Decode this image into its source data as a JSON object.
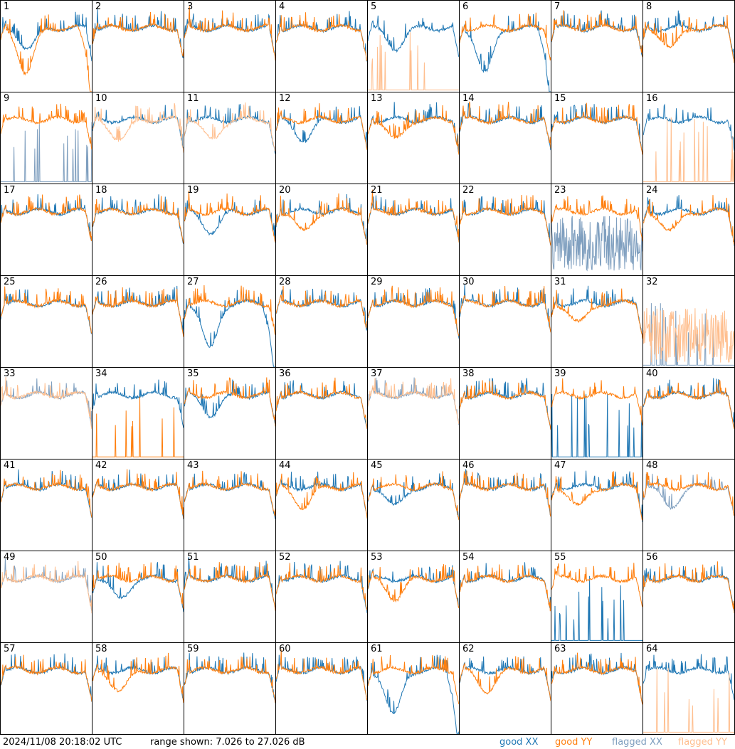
{
  "footer": {
    "timestamp": "2024/11/08 20:18:02 UTC",
    "range_text": "range shown: 7.026 to 27.026 dB"
  },
  "legend": {
    "good_xx": "good XX",
    "good_yy": "good YY",
    "flagged_xx": "flagged XX",
    "flagged_yy": "flagged YY"
  },
  "colors": {
    "good_xx": "#1f77b4",
    "good_yy": "#ff7f0e",
    "flagged_xx": "#7f9fbf",
    "flagged_yy": "#ffbf8f"
  },
  "chart_data": {
    "type": "line",
    "ylim": [
      7.026,
      27.026
    ],
    "yunit": "dB",
    "layout": "8x8 grid of small multiples",
    "panels": [
      {
        "id": "1",
        "xx": "dip",
        "xx_flag": false,
        "yy": "deepdip",
        "yy_flag": false
      },
      {
        "id": "2",
        "xx": "normal",
        "xx_flag": false,
        "yy": "normal",
        "yy_flag": false
      },
      {
        "id": "3",
        "xx": "normal",
        "xx_flag": false,
        "yy": "normal",
        "yy_flag": false
      },
      {
        "id": "4",
        "xx": "normal",
        "xx_flag": false,
        "yy": "normal",
        "yy_flag": false
      },
      {
        "id": "5",
        "xx": "dip",
        "xx_flag": false,
        "yy": "spiky",
        "yy_flag": true
      },
      {
        "id": "6",
        "xx": "deepdip",
        "xx_flag": false,
        "yy": "normal",
        "yy_flag": false
      },
      {
        "id": "7",
        "xx": "normal",
        "xx_flag": false,
        "yy": "normal",
        "yy_flag": false
      },
      {
        "id": "8",
        "xx": "normal",
        "xx_flag": false,
        "yy": "dip",
        "yy_flag": false
      },
      {
        "id": "9",
        "xx": "spiky",
        "xx_flag": true,
        "yy": "normal",
        "yy_flag": false
      },
      {
        "id": "10",
        "xx": "normal",
        "xx_flag": false,
        "yy": "dip",
        "yy_flag": true
      },
      {
        "id": "11",
        "xx": "normal",
        "xx_flag": false,
        "yy": "dip",
        "yy_flag": true
      },
      {
        "id": "12",
        "xx": "dip",
        "xx_flag": false,
        "yy": "normal",
        "yy_flag": false
      },
      {
        "id": "13",
        "xx": "normal",
        "xx_flag": false,
        "yy": "dip",
        "yy_flag": false
      },
      {
        "id": "14",
        "xx": "normal",
        "xx_flag": false,
        "yy": "normal",
        "yy_flag": false
      },
      {
        "id": "15",
        "xx": "normal",
        "xx_flag": false,
        "yy": "normal",
        "yy_flag": false
      },
      {
        "id": "16",
        "xx": "normal",
        "xx_flag": false,
        "yy": "spiky",
        "yy_flag": true
      },
      {
        "id": "17",
        "xx": "normal",
        "xx_flag": false,
        "yy": "normal",
        "yy_flag": false
      },
      {
        "id": "18",
        "xx": "normal",
        "xx_flag": false,
        "yy": "normal",
        "yy_flag": false
      },
      {
        "id": "19",
        "xx": "dip",
        "xx_flag": false,
        "yy": "normal",
        "yy_flag": false
      },
      {
        "id": "20",
        "xx": "normal",
        "xx_flag": false,
        "yy": "dip",
        "yy_flag": false
      },
      {
        "id": "21",
        "xx": "normal",
        "xx_flag": false,
        "yy": "normal",
        "yy_flag": false
      },
      {
        "id": "22",
        "xx": "normal",
        "xx_flag": false,
        "yy": "normal",
        "yy_flag": false
      },
      {
        "id": "23",
        "xx": "noise",
        "xx_flag": true,
        "yy": "normal",
        "yy_flag": false
      },
      {
        "id": "24",
        "xx": "normal",
        "xx_flag": false,
        "yy": "dip",
        "yy_flag": false
      },
      {
        "id": "25",
        "xx": "normal",
        "xx_flag": false,
        "yy": "normal",
        "yy_flag": false
      },
      {
        "id": "26",
        "xx": "normal",
        "xx_flag": false,
        "yy": "normal",
        "yy_flag": false
      },
      {
        "id": "27",
        "xx": "deepdip",
        "xx_flag": false,
        "yy": "normal",
        "yy_flag": false
      },
      {
        "id": "28",
        "xx": "normal",
        "xx_flag": false,
        "yy": "normal",
        "yy_flag": false
      },
      {
        "id": "29",
        "xx": "normal",
        "xx_flag": false,
        "yy": "normal",
        "yy_flag": false
      },
      {
        "id": "30",
        "xx": "normal",
        "xx_flag": false,
        "yy": "normal",
        "yy_flag": false
      },
      {
        "id": "31",
        "xx": "normal",
        "xx_flag": false,
        "yy": "dip",
        "yy_flag": false
      },
      {
        "id": "32",
        "xx": "spiky",
        "xx_flag": true,
        "yy": "noise",
        "yy_flag": true
      },
      {
        "id": "33",
        "xx": "normal",
        "xx_flag": true,
        "yy": "normal",
        "yy_flag": true
      },
      {
        "id": "34",
        "xx": "normal",
        "xx_flag": false,
        "yy": "spiky",
        "yy_flag": false
      },
      {
        "id": "35",
        "xx": "dip",
        "xx_flag": false,
        "yy": "normal",
        "yy_flag": false
      },
      {
        "id": "36",
        "xx": "normal",
        "xx_flag": false,
        "yy": "normal",
        "yy_flag": false
      },
      {
        "id": "37",
        "xx": "normal",
        "xx_flag": true,
        "yy": "normal",
        "yy_flag": true
      },
      {
        "id": "38",
        "xx": "normal",
        "xx_flag": false,
        "yy": "normal",
        "yy_flag": false
      },
      {
        "id": "39",
        "xx": "spiky",
        "xx_flag": false,
        "yy": "normal",
        "yy_flag": false
      },
      {
        "id": "40",
        "xx": "normal",
        "xx_flag": false,
        "yy": "normal",
        "yy_flag": false
      },
      {
        "id": "41",
        "xx": "normal",
        "xx_flag": false,
        "yy": "normal",
        "yy_flag": false
      },
      {
        "id": "42",
        "xx": "normal",
        "xx_flag": false,
        "yy": "normal",
        "yy_flag": false
      },
      {
        "id": "43",
        "xx": "normal",
        "xx_flag": false,
        "yy": "normal",
        "yy_flag": false
      },
      {
        "id": "44",
        "xx": "normal",
        "xx_flag": false,
        "yy": "dip",
        "yy_flag": false
      },
      {
        "id": "45",
        "xx": "dip",
        "xx_flag": false,
        "yy": "normal",
        "yy_flag": false
      },
      {
        "id": "46",
        "xx": "normal",
        "xx_flag": false,
        "yy": "normal",
        "yy_flag": false
      },
      {
        "id": "47",
        "xx": "normal",
        "xx_flag": false,
        "yy": "dip",
        "yy_flag": false
      },
      {
        "id": "48",
        "xx": "dip",
        "xx_flag": true,
        "yy": "normal",
        "yy_flag": false
      },
      {
        "id": "49",
        "xx": "normal",
        "xx_flag": true,
        "yy": "normal",
        "yy_flag": true
      },
      {
        "id": "50",
        "xx": "dip",
        "xx_flag": false,
        "yy": "normal",
        "yy_flag": false
      },
      {
        "id": "51",
        "xx": "normal",
        "xx_flag": false,
        "yy": "normal",
        "yy_flag": false
      },
      {
        "id": "52",
        "xx": "normal",
        "xx_flag": false,
        "yy": "normal",
        "yy_flag": false
      },
      {
        "id": "53",
        "xx": "normal",
        "xx_flag": false,
        "yy": "dip",
        "yy_flag": false
      },
      {
        "id": "54",
        "xx": "normal",
        "xx_flag": false,
        "yy": "normal",
        "yy_flag": false
      },
      {
        "id": "55",
        "xx": "spiky",
        "xx_flag": false,
        "yy": "normal",
        "yy_flag": false
      },
      {
        "id": "56",
        "xx": "normal",
        "xx_flag": false,
        "yy": "normal",
        "yy_flag": false
      },
      {
        "id": "57",
        "xx": "normal",
        "xx_flag": false,
        "yy": "normal",
        "yy_flag": false
      },
      {
        "id": "58",
        "xx": "normal",
        "xx_flag": false,
        "yy": "dip",
        "yy_flag": false
      },
      {
        "id": "59",
        "xx": "normal",
        "xx_flag": false,
        "yy": "normal",
        "yy_flag": false
      },
      {
        "id": "60",
        "xx": "normal",
        "xx_flag": false,
        "yy": "normal",
        "yy_flag": false
      },
      {
        "id": "61",
        "xx": "deepdip",
        "xx_flag": false,
        "yy": "normal",
        "yy_flag": false
      },
      {
        "id": "62",
        "xx": "normal",
        "xx_flag": false,
        "yy": "dip",
        "yy_flag": false
      },
      {
        "id": "63",
        "xx": "normal",
        "xx_flag": false,
        "yy": "normal",
        "yy_flag": false
      },
      {
        "id": "64",
        "xx": "normal",
        "xx_flag": false,
        "yy": "spiky",
        "yy_flag": true
      }
    ]
  }
}
